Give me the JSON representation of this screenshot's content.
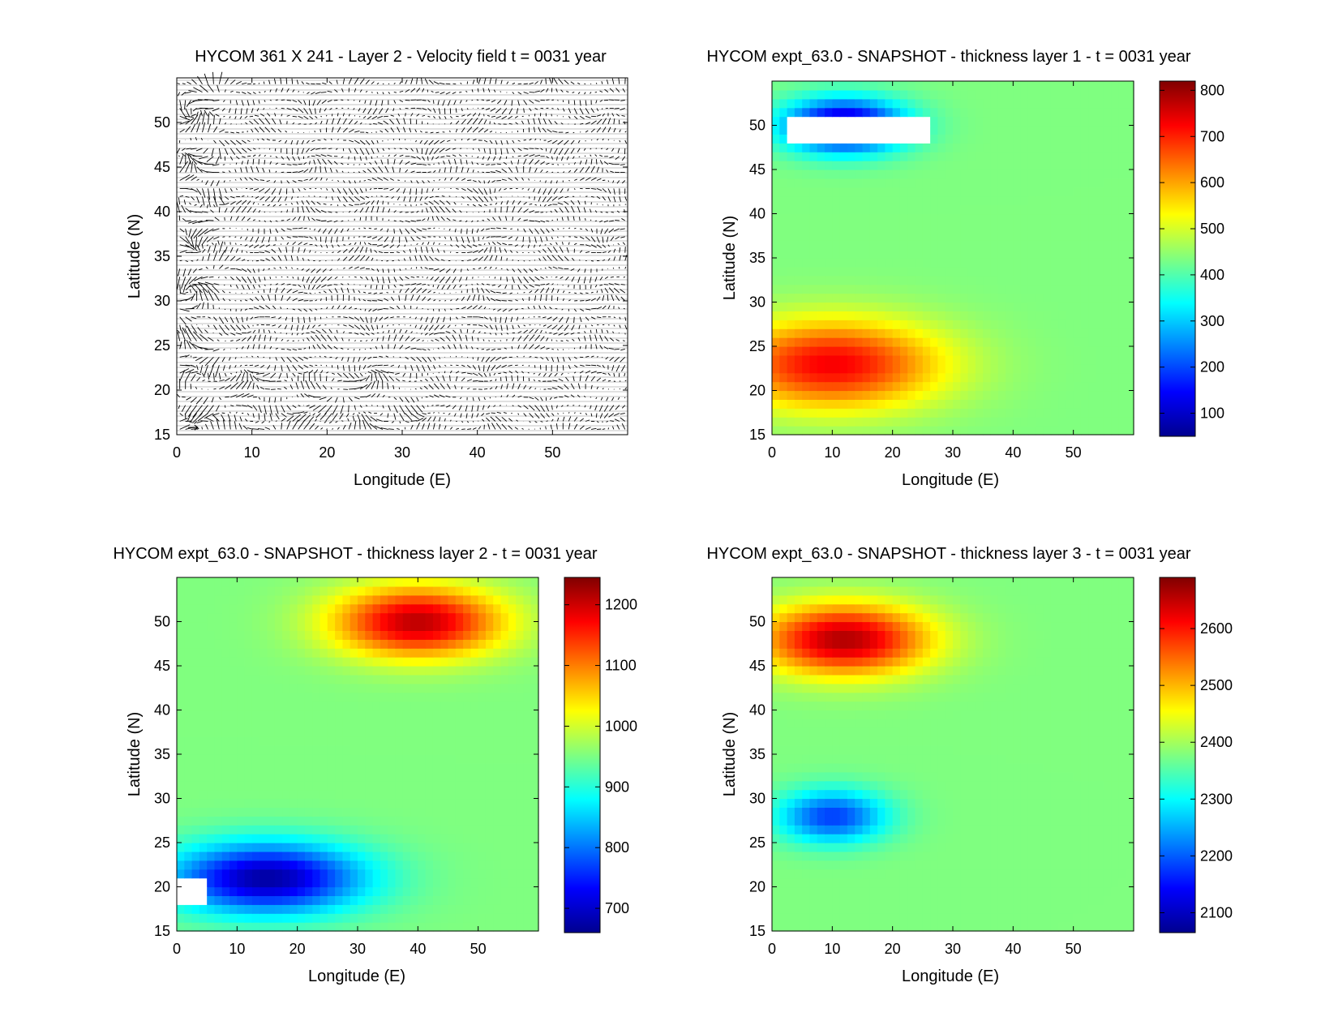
{
  "figure": {
    "background": "#ffffff"
  },
  "chart_data": [
    {
      "id": "velocity",
      "type": "quiver",
      "title": "HYCOM 361 X 241 - Layer 2 - Velocity field  t = 0031 year",
      "xlabel": "Longitude (E)",
      "ylabel": "Latitude (N)",
      "xlim": [
        0,
        60
      ],
      "ylim": [
        15,
        55
      ],
      "xticks": [
        0,
        10,
        20,
        30,
        40,
        50
      ],
      "yticks": [
        15,
        20,
        25,
        30,
        35,
        40,
        45,
        50
      ],
      "grid": false,
      "arrow_color": "#000000",
      "reference_arrow_at": [
        1.5,
        15.8
      ]
    },
    {
      "id": "layer1",
      "type": "contourf",
      "title": "HYCOM expt_63.0 - SNAPSHOT - thickness layer 1 - t = 0031 year",
      "xlabel": "Longitude (E)",
      "ylabel": "Latitude (N)",
      "xlim": [
        0,
        60
      ],
      "ylim": [
        15,
        55
      ],
      "xticks": [
        0,
        10,
        20,
        30,
        40,
        50
      ],
      "yticks": [
        15,
        20,
        25,
        30,
        35,
        40,
        45,
        50
      ],
      "colorbar": {
        "range": [
          50,
          820
        ],
        "ticks": [
          100,
          200,
          300,
          400,
          500,
          600,
          700,
          800
        ],
        "colormap": "jet"
      },
      "feature_centers": [
        {
          "lon": 10,
          "lat": 23,
          "value": 730,
          "spread_lon": 18,
          "spread_lat": 5
        },
        {
          "lon": 12,
          "lat": 50,
          "value": 60,
          "spread_lon": 10,
          "spread_lat": 3
        }
      ],
      "no_data_patch": {
        "lon_range": [
          2,
          26
        ],
        "lat_range": [
          48,
          51
        ]
      }
    },
    {
      "id": "layer2",
      "type": "contourf",
      "title": "HYCOM expt_63.0 - SNAPSHOT - thickness layer 2 - t = 0031 year",
      "xlabel": "Longitude (E)",
      "ylabel": "Latitude (N)",
      "xlim": [
        0,
        60
      ],
      "ylim": [
        15,
        55
      ],
      "xticks": [
        0,
        10,
        20,
        30,
        40,
        50
      ],
      "yticks": [
        15,
        20,
        25,
        30,
        35,
        40,
        45,
        50
      ],
      "colorbar": {
        "range": [
          660,
          1245
        ],
        "ticks": [
          700,
          800,
          900,
          1000,
          1100,
          1200
        ],
        "colormap": "jet"
      },
      "feature_centers": [
        {
          "lon": 40,
          "lat": 50,
          "value": 1210,
          "spread_lon": 14,
          "spread_lat": 4
        },
        {
          "lon": 15,
          "lat": 21,
          "value": 680,
          "spread_lon": 16,
          "spread_lat": 4
        }
      ],
      "no_data_patch": {
        "lon_range": [
          0,
          4
        ],
        "lat_range": [
          17.5,
          20.5
        ]
      }
    },
    {
      "id": "layer3",
      "type": "contourf",
      "title": "HYCOM expt_63.0 - SNAPSHOT - thickness layer 3 - t = 0031 year",
      "xlabel": "Longitude (E)",
      "ylabel": "Latitude (N)",
      "xlim": [
        0,
        60
      ],
      "ylim": [
        15,
        55
      ],
      "xticks": [
        0,
        10,
        20,
        30,
        40,
        50
      ],
      "yticks": [
        15,
        20,
        25,
        30,
        35,
        40,
        45,
        50
      ],
      "colorbar": {
        "range": [
          2065,
          2690
        ],
        "ticks": [
          2100,
          2200,
          2300,
          2400,
          2500,
          2600
        ],
        "colormap": "jet"
      },
      "feature_centers": [
        {
          "lon": 12,
          "lat": 48,
          "value": 2660,
          "spread_lon": 14,
          "spread_lat": 4
        },
        {
          "lon": 10,
          "lat": 28,
          "value": 2180,
          "spread_lon": 9,
          "spread_lat": 3
        }
      ],
      "no_data_patch": null
    }
  ]
}
